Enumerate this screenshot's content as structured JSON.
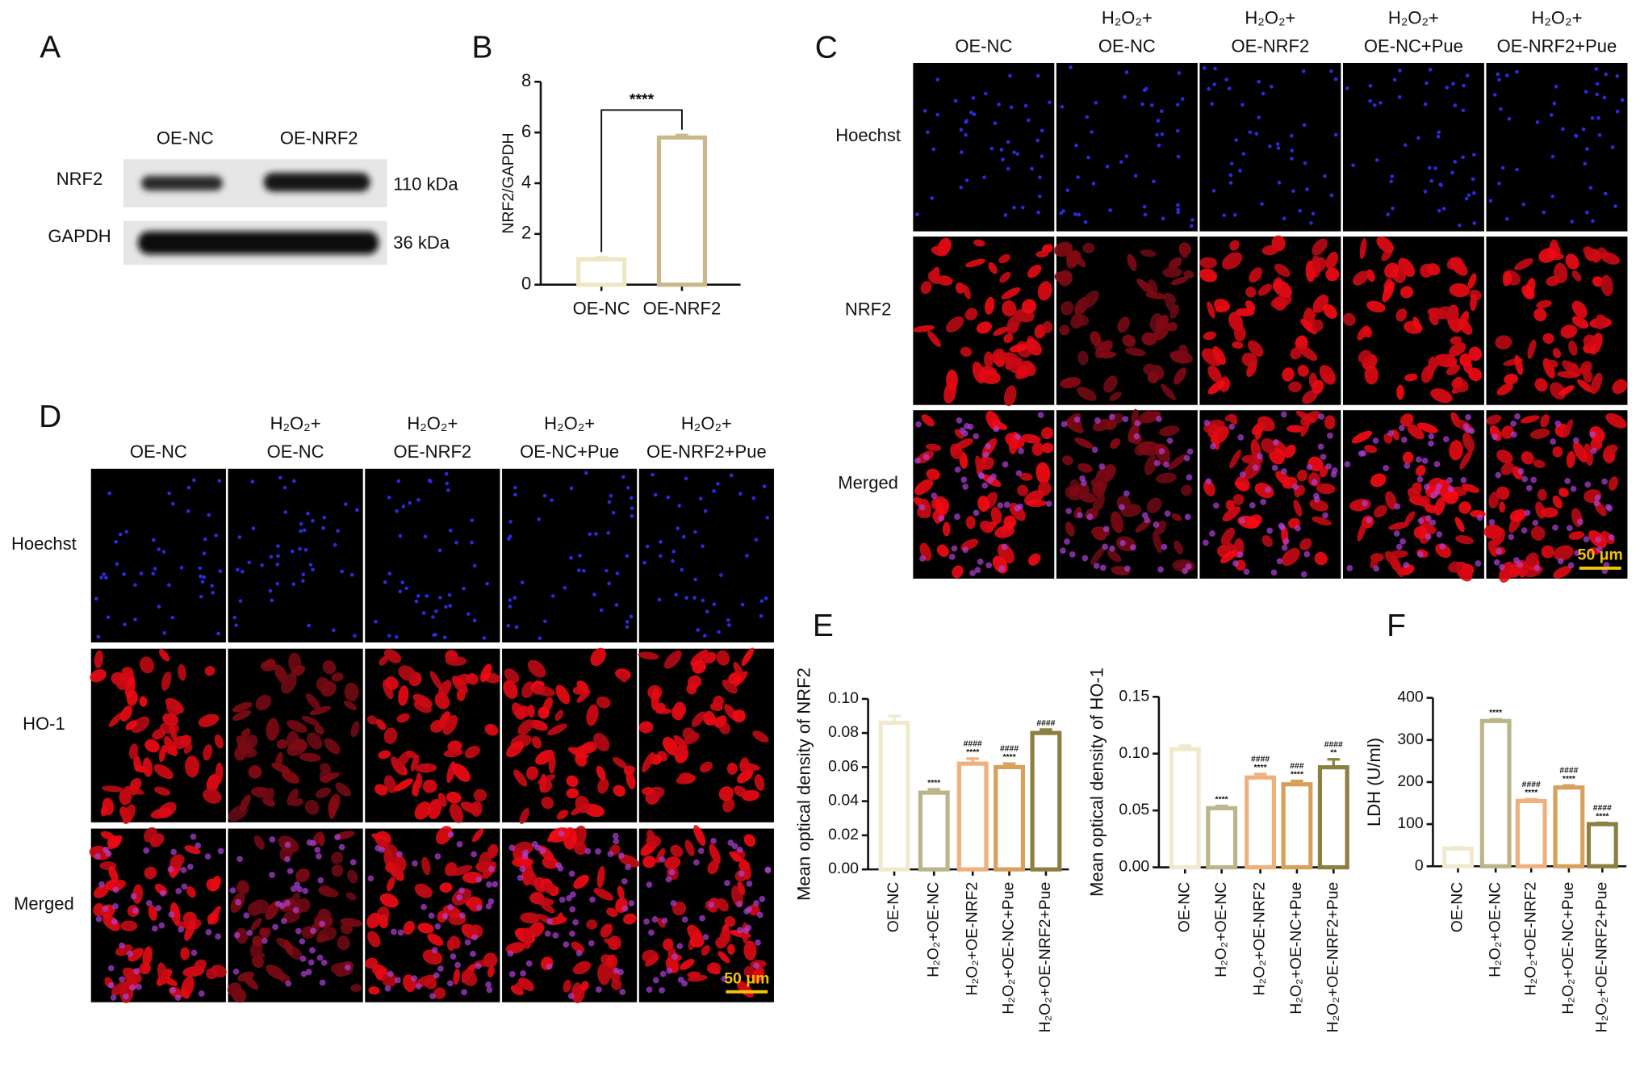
{
  "panel_labels": [
    "A",
    "B",
    "C",
    "D",
    "E",
    "F"
  ],
  "blot": {
    "columns": [
      "OE-NC",
      "OE-NRF2"
    ],
    "rows": [
      "NRF2",
      "GAPDH"
    ],
    "sizes": [
      "110 kDa",
      "36 kDa"
    ]
  },
  "panel_c": {
    "columns": [
      [
        "OE-NC"
      ],
      [
        "H₂O₂+",
        "OE-NC"
      ],
      [
        "H₂O₂+",
        "OE-NRF2"
      ],
      [
        "H₂O₂+",
        "OE-NC+Pue"
      ],
      [
        "H₂O₂+",
        "OE-NRF2+Pue"
      ]
    ],
    "rows": [
      "Hoechst",
      "NRF2",
      "Merged"
    ],
    "scale_bar": "50 μm"
  },
  "panel_d": {
    "columns": [
      [
        "OE-NC"
      ],
      [
        "H₂O₂+",
        "OE-NC"
      ],
      [
        "H₂O₂+",
        "OE-NRF2"
      ],
      [
        "H₂O₂+",
        "OE-NC+Pue"
      ],
      [
        "H₂O₂+",
        "OE-NRF2+Pue"
      ]
    ],
    "rows": [
      "Hoechst",
      "HO-1",
      "Merged"
    ],
    "scale_bar": "50 μm"
  },
  "chart_data": [
    {
      "type": "bar",
      "ylabel": "NRF2/GAPDH",
      "categories": [
        "OE-NC",
        "OE-NRF2"
      ],
      "values": [
        1.0,
        5.8
      ],
      "errors": [
        0.08,
        0.1
      ],
      "colors": [
        "#efe6c4",
        "#c9b88a"
      ],
      "ylim": [
        0,
        8
      ],
      "yticks": [
        0,
        2,
        4,
        6,
        8
      ],
      "significance": "****"
    },
    {
      "type": "bar",
      "ylabel": "Mean optical density of NRF2",
      "categories": [
        "OE-NC",
        "H₂O₂+OE-NC",
        "H₂O₂+OE-NRF2",
        "H₂O₂+OE-NC+Pue",
        "H₂O₂+OE-NRF2+Pue"
      ],
      "values": [
        0.086,
        0.045,
        0.062,
        0.06,
        0.08
      ],
      "errors": [
        0.004,
        0.002,
        0.003,
        0.002,
        0.002
      ],
      "colors": [
        "#f1e9cd",
        "#bdb58a",
        "#f0b07c",
        "#d8a05a",
        "#8c8040"
      ],
      "ylim": [
        0,
        0.1
      ],
      "yticks": [
        {
          "value": 0,
          "label": "0.00"
        },
        {
          "value": 0.02,
          "label": "0.02"
        },
        {
          "value": 0.04,
          "label": "0.04"
        },
        {
          "value": 0.06,
          "label": "0.06"
        },
        {
          "value": 0.08,
          "label": "0.08"
        },
        {
          "value": 0.1,
          "label": "0.10"
        }
      ],
      "annotations": [
        [],
        [
          "****"
        ],
        [
          "####",
          "****"
        ],
        [
          "####",
          "****"
        ],
        [
          "####"
        ]
      ]
    },
    {
      "type": "bar",
      "ylabel": "Mean optical density of HO-1",
      "categories": [
        "OE-NC",
        "H₂O₂+OE-NC",
        "H₂O₂+OE-NRF2",
        "H₂O₂+OE-NC+Pue",
        "H₂O₂+OE-NRF2+Pue"
      ],
      "values": [
        0.104,
        0.052,
        0.079,
        0.073,
        0.088
      ],
      "errors": [
        0.003,
        0.002,
        0.003,
        0.003,
        0.007
      ],
      "colors": [
        "#f1e9cd",
        "#bdb58a",
        "#f0b07c",
        "#d8a05a",
        "#8c8040"
      ],
      "ylim": [
        0,
        0.15
      ],
      "yticks": [
        {
          "value": 0,
          "label": "0.00"
        },
        {
          "value": 0.05,
          "label": "0.05"
        },
        {
          "value": 0.1,
          "label": "0.10"
        },
        {
          "value": 0.15,
          "label": "0.15"
        }
      ],
      "annotations": [
        [],
        [
          "****"
        ],
        [
          "####",
          "****"
        ],
        [
          "###",
          "****"
        ],
        [
          "####",
          "**"
        ]
      ]
    },
    {
      "type": "bar",
      "ylabel": "LDH (U/ml)",
      "categories": [
        "OE-NC",
        "H₂O₂+OE-NC",
        "H₂O₂+OE-NRF2",
        "H₂O₂+OE-NC+Pue",
        "H₂O₂+OE-NRF2+Pue"
      ],
      "values": [
        42,
        345,
        155,
        187,
        100
      ],
      "errors": [
        3,
        4,
        4,
        5,
        3
      ],
      "colors": [
        "#f1e9cd",
        "#bdb58a",
        "#f0b07c",
        "#d8a05a",
        "#8c8040"
      ],
      "ylim": [
        0,
        400
      ],
      "yticks": [
        0,
        100,
        200,
        300,
        400
      ],
      "annotations": [
        [],
        [
          "****"
        ],
        [
          "####",
          "****"
        ],
        [
          "####",
          "****"
        ],
        [
          "####",
          "****"
        ]
      ]
    }
  ]
}
